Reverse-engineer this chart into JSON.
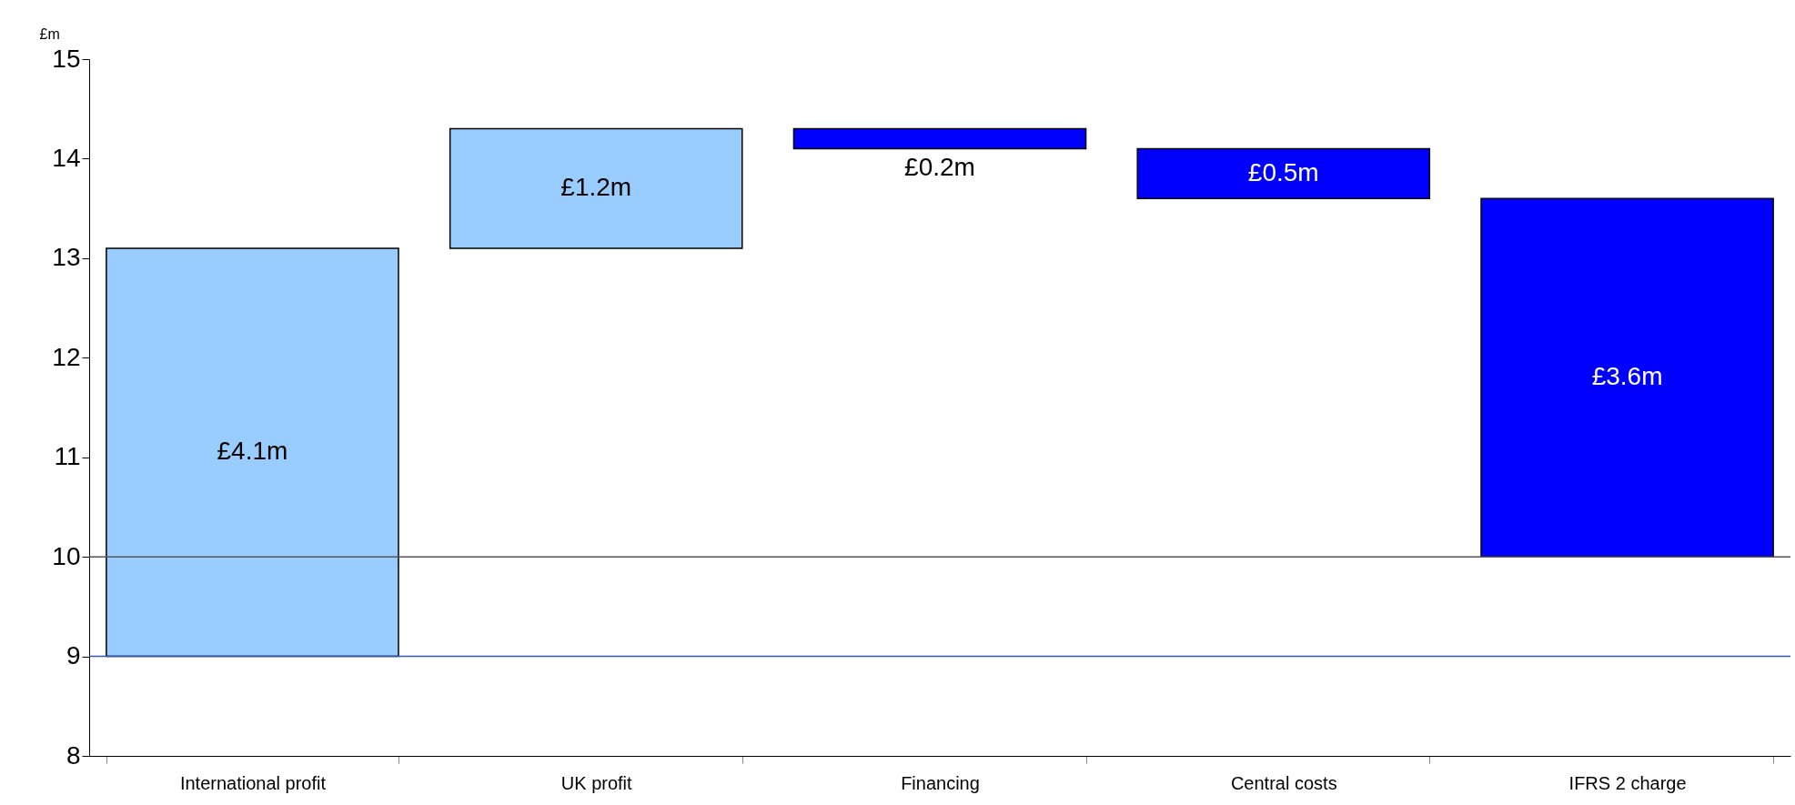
{
  "chart_data": {
    "type": "bar",
    "ylabel": "£m",
    "categories": [
      "International profit",
      "UK profit",
      "Financing",
      "Central costs",
      "IFRS 2 charge"
    ],
    "values": [
      4.1,
      1.2,
      0.2,
      0.5,
      3.6
    ],
    "base": [
      9,
      13.1,
      14.1,
      13.6,
      10
    ],
    "colors": [
      "#99ccff",
      "#99ccff",
      "#0000ff",
      "#0000ff",
      "#0000ff"
    ],
    "value_labels": [
      "£4.1m",
      "£1.2m",
      "£0.2m",
      "£0.5m",
      "£3.6m"
    ],
    "ylim": [
      8,
      15
    ],
    "yticks": [
      8,
      9,
      10,
      11,
      12,
      13,
      14,
      15
    ],
    "ref_lines": [
      {
        "axis": "y",
        "value": 9,
        "color": "#3355aa"
      },
      {
        "axis": "y",
        "value": 10,
        "color": "#555555"
      }
    ]
  }
}
